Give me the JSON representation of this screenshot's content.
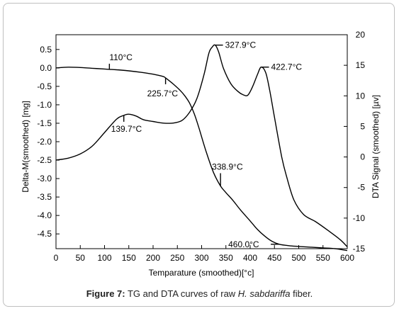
{
  "caption": {
    "lead": "Figure 7:",
    "text_before": " TG and DTA curves of raw ",
    "species": "H. sabdariffa",
    "text_after": " fiber."
  },
  "chart_data": {
    "type": "line",
    "title": "",
    "xlabel": "Temparature (smoothed)[°c]",
    "ylabel": "Delta-M(smoothed) [mg]",
    "y2label": "DTA Signal (smoothed) [µv]",
    "xlim": [
      0,
      600
    ],
    "ylim": [
      -4.9,
      0.9
    ],
    "y2lim": [
      -15,
      20
    ],
    "x_ticks": [
      "0",
      "50",
      "100",
      "150",
      "200",
      "250",
      "300",
      "350",
      "400",
      "450",
      "500",
      "550",
      "600"
    ],
    "y_ticks": [
      "0.5",
      "0.0",
      "-0.5",
      "-1.0",
      "-1.5",
      "-2.0",
      "-2.5",
      "-3.0",
      "-3.5",
      "-4.0",
      "-4.5"
    ],
    "y2_ticks": [
      "20",
      "15",
      "10",
      "5",
      "0",
      "-5",
      "-10",
      "-15"
    ],
    "grid": false,
    "legend": "none",
    "series": [
      {
        "axis": "left",
        "color": "#000000",
        "x": [
          0,
          25,
          50,
          75,
          100,
          110,
          125,
          150,
          175,
          200,
          220,
          225.7,
          240,
          255,
          265,
          275,
          285,
          295,
          310,
          325,
          338.9,
          350,
          365,
          380,
          400,
          415,
          430,
          445,
          460,
          480,
          500,
          525,
          550,
          575,
          600
        ],
        "y": [
          0.0,
          0.02,
          0.01,
          -0.01,
          -0.03,
          -0.04,
          -0.05,
          -0.08,
          -0.12,
          -0.17,
          -0.23,
          -0.27,
          -0.42,
          -0.6,
          -0.75,
          -0.95,
          -1.25,
          -1.65,
          -2.3,
          -2.85,
          -3.2,
          -3.38,
          -3.6,
          -3.85,
          -4.15,
          -4.38,
          -4.56,
          -4.7,
          -4.78,
          -4.82,
          -4.84,
          -4.86,
          -4.88,
          -4.9,
          -4.95
        ]
      },
      {
        "axis": "right",
        "color": "#000000",
        "x": [
          0,
          25,
          50,
          75,
          100,
          125,
          139.7,
          150,
          165,
          180,
          200,
          215,
          230,
          245,
          260,
          275,
          290,
          305,
          315,
          322,
          327.9,
          335,
          345,
          360,
          375,
          385,
          395,
          405,
          415,
          422.7,
          432,
          440,
          450,
          465,
          475,
          490,
          510,
          535,
          560,
          585,
          600
        ],
        "y": [
          -0.5,
          -0.2,
          0.5,
          1.8,
          4.0,
          6.2,
          6.8,
          7.0,
          6.7,
          6.1,
          5.8,
          5.6,
          5.5,
          5.6,
          6.0,
          7.3,
          9.5,
          13.5,
          17.0,
          18.0,
          18.3,
          17.2,
          14.5,
          12.0,
          10.7,
          10.2,
          10.1,
          11.5,
          13.5,
          14.7,
          13.8,
          11.0,
          6.5,
          0.0,
          -3.2,
          -7.0,
          -9.4,
          -10.6,
          -12.0,
          -13.5,
          -14.7
        ]
      }
    ],
    "annotations": [
      {
        "label": "110°C",
        "series": 0,
        "x": 110,
        "y": -0.04
      },
      {
        "label": "225.7°C",
        "series": 0,
        "x": 225.7,
        "y": -0.27
      },
      {
        "label": "338.9°C",
        "series": 0,
        "x": 338.9,
        "y": -3.2
      },
      {
        "label": "460.0°C",
        "series": 0,
        "x": 460,
        "y": -4.78
      },
      {
        "label": "139.7°C",
        "series": 1,
        "x": 139.7,
        "y": 6.8
      },
      {
        "label": "327.9°C",
        "series": 1,
        "x": 327.9,
        "y": 18.3
      },
      {
        "label": "422.7°C",
        "series": 1,
        "x": 422.7,
        "y": 14.7
      }
    ]
  }
}
